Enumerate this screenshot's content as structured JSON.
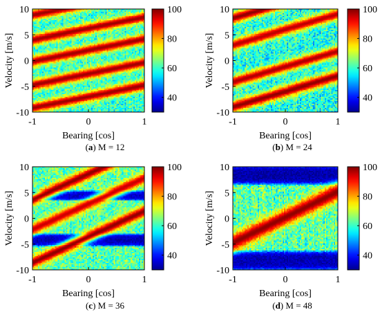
{
  "figure": {
    "colormap": "jet",
    "colormap_stops": [
      "#00008f",
      "#0000ff",
      "#0080ff",
      "#00ffff",
      "#80ff80",
      "#ffff00",
      "#ff8000",
      "#ff0000",
      "#800000"
    ]
  },
  "chart_data": [
    {
      "type": "heatmap",
      "panel_letter": "(a)",
      "caption": "M = 12",
      "xlabel": "Bearing [cos]",
      "ylabel": "Velocity [m/s]",
      "xlim": [
        -1,
        1
      ],
      "ylim": [
        -10,
        10
      ],
      "xticks": [
        "-1",
        "0",
        "1"
      ],
      "yticks": [
        "10",
        "5",
        "0",
        "-5",
        "-10"
      ],
      "colorbar": {
        "range": [
          30,
          100
        ],
        "ticks": [
          "100",
          "80",
          "60",
          "40"
        ]
      },
      "background": {
        "base": 60,
        "noise": 8
      },
      "ridges": [
        {
          "v_at_minus1": 8.8,
          "slope": 2.2,
          "peak": 98,
          "width": 0.7
        },
        {
          "v_at_minus1": 4.0,
          "slope": 2.2,
          "peak": 98,
          "width": 0.7
        },
        {
          "v_at_minus1": -0.2,
          "slope": 2.2,
          "peak": 98,
          "width": 0.7
        },
        {
          "v_at_minus1": -4.8,
          "slope": 2.2,
          "peak": 98,
          "width": 0.7
        },
        {
          "v_at_minus1": -9.2,
          "slope": 2.2,
          "peak": 98,
          "width": 0.7
        }
      ],
      "troughs": []
    },
    {
      "type": "heatmap",
      "panel_letter": "(b)",
      "caption": "M = 24",
      "xlabel": "Bearing [cos]",
      "ylabel": "Velocity [m/s]",
      "xlim": [
        -1,
        1
      ],
      "ylim": [
        -10,
        10
      ],
      "xticks": [
        "-1",
        "0",
        "1"
      ],
      "yticks": [
        "10",
        "5",
        "0",
        "-5",
        "-10"
      ],
      "colorbar": {
        "range": [
          30,
          100
        ],
        "ticks": [
          "100",
          "80",
          "60",
          "40"
        ]
      },
      "background": {
        "base": 58,
        "noise": 9
      },
      "ridges": [
        {
          "v_at_minus1": 8.2,
          "slope": 3.0,
          "peak": 99,
          "width": 0.75
        },
        {
          "v_at_minus1": 3.0,
          "slope": 3.0,
          "peak": 96,
          "width": 0.75
        },
        {
          "v_at_minus1": -4.2,
          "slope": 3.0,
          "peak": 97,
          "width": 0.75
        },
        {
          "v_at_minus1": -9.0,
          "slope": 3.0,
          "peak": 99,
          "width": 0.8
        }
      ],
      "troughs": []
    },
    {
      "type": "heatmap",
      "panel_letter": "(c)",
      "caption": "M = 36",
      "xlabel": "Bearing [cos]",
      "ylabel": "Velocity [m/s]",
      "xlim": [
        -1,
        1
      ],
      "ylim": [
        -10,
        10
      ],
      "xticks": [
        "-1",
        "0",
        "1"
      ],
      "yticks": [
        "10",
        "5",
        "0",
        "-5",
        "-10"
      ],
      "colorbar": {
        "range": [
          30,
          100
        ],
        "ticks": [
          "100",
          "80",
          "60",
          "40"
        ]
      },
      "background": {
        "base": 62,
        "noise": 8
      },
      "ridges": [
        {
          "v_at_minus1": 3.6,
          "slope": 5.0,
          "peak": 99,
          "width": 0.8
        },
        {
          "v_at_minus1": -2.2,
          "slope": 5.0,
          "peak": 95,
          "width": 0.8
        },
        {
          "v_at_minus1": -8.6,
          "slope": 5.0,
          "peak": 99,
          "width": 0.8
        }
      ],
      "troughs": [
        {
          "v": 4.4,
          "half_height": 1.0,
          "value": 34
        },
        {
          "v": -4.2,
          "half_height": 1.3,
          "value": 33
        }
      ]
    },
    {
      "type": "heatmap",
      "panel_letter": "(d)",
      "caption": "M = 48",
      "xlabel": "Bearing [cos]",
      "ylabel": "Velocity [m/s]",
      "xlim": [
        -1,
        1
      ],
      "ylim": [
        -10,
        10
      ],
      "xticks": [
        "-1",
        "0",
        "1"
      ],
      "yticks": [
        "10",
        "5",
        "0",
        "-5",
        "-10"
      ],
      "colorbar": {
        "range": [
          30,
          100
        ],
        "ticks": [
          "100",
          "80",
          "60",
          "40"
        ]
      },
      "background": {
        "base": 62,
        "noise": 9
      },
      "ridges": [
        {
          "v_at_minus1": -4.8,
          "slope": 5.0,
          "peak": 99,
          "width": 1.2
        }
      ],
      "troughs": [
        {
          "v": 8.4,
          "half_height": 2.1,
          "value": 32
        },
        {
          "v": -8.2,
          "half_height": 2.1,
          "value": 33
        }
      ]
    }
  ]
}
